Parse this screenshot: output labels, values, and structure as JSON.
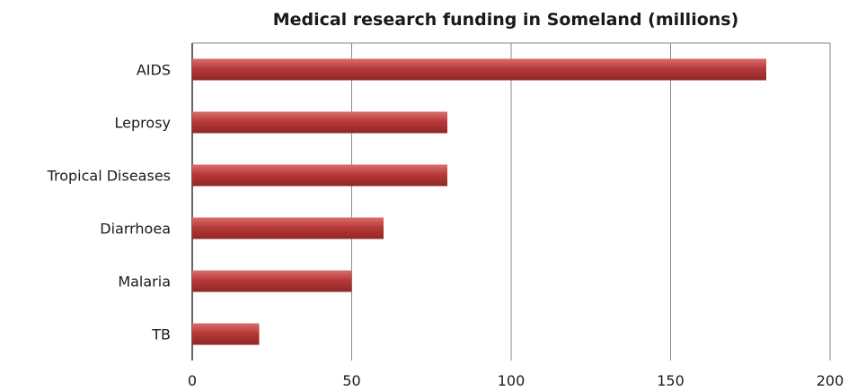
{
  "chart_data": {
    "type": "bar",
    "orientation": "horizontal",
    "title": "Medical research funding in Someland  (millions)",
    "xlabel": "",
    "ylabel": "",
    "categories": [
      "AIDS",
      "Leprosy",
      "Tropical Diseases",
      "Diarrhoea",
      "Malaria",
      "TB"
    ],
    "values": [
      180,
      80,
      80,
      60,
      50,
      21
    ],
    "xlim": [
      0,
      200
    ],
    "xticks": [
      0,
      50,
      100,
      150,
      200
    ],
    "xtick_labels": [
      "0",
      "50",
      "100",
      "150",
      "200"
    ],
    "grid": "vertical",
    "legend": "none",
    "bar_color": "#b83a3a"
  }
}
